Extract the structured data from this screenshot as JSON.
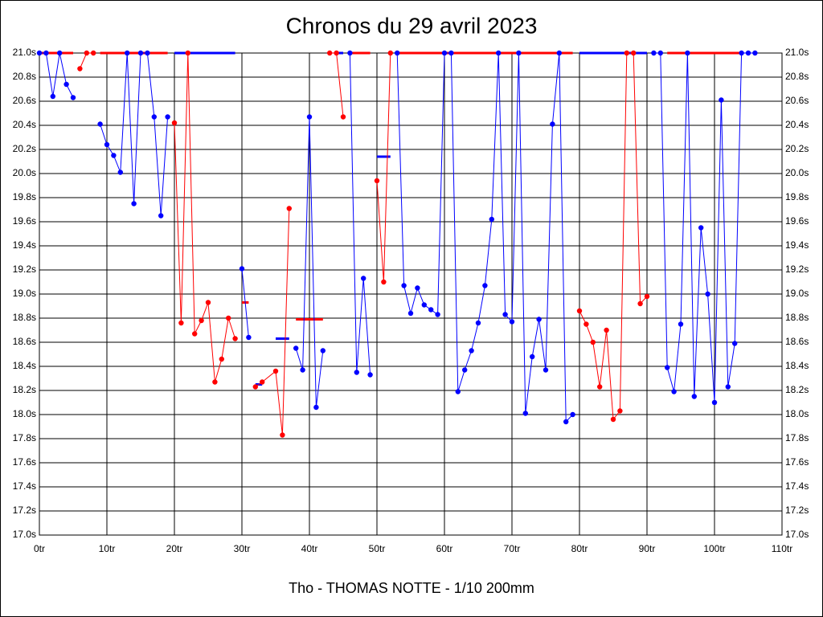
{
  "chart_data": {
    "type": "line",
    "title": "Chronos du 29 avril 2023",
    "x_label": "Tho - THOMAS NOTTE - 1/10 200mm",
    "xlim": [
      0,
      110
    ],
    "xticks": [
      {
        "value": 0,
        "label": "0tr"
      },
      {
        "value": 10,
        "label": "10tr"
      },
      {
        "value": 20,
        "label": "20tr"
      },
      {
        "value": 30,
        "label": "30tr"
      },
      {
        "value": 40,
        "label": "40tr"
      },
      {
        "value": 50,
        "label": "50tr"
      },
      {
        "value": 60,
        "label": "60tr"
      },
      {
        "value": 70,
        "label": "70tr"
      },
      {
        "value": 80,
        "label": "80tr"
      },
      {
        "value": 90,
        "label": "90tr"
      },
      {
        "value": 100,
        "label": "100tr"
      },
      {
        "value": 110,
        "label": "110tr"
      }
    ],
    "ylim": [
      17,
      21
    ],
    "yticks": [
      {
        "value": 17,
        "label": "17.0s"
      },
      {
        "value": 17.2,
        "label": "17.2s"
      },
      {
        "value": 17.4,
        "label": "17.4s"
      },
      {
        "value": 17.6,
        "label": "17.6s"
      },
      {
        "value": 17.8,
        "label": "17.8s"
      },
      {
        "value": 18,
        "label": "18.0s"
      },
      {
        "value": 18.2,
        "label": "18.2s"
      },
      {
        "value": 18.4,
        "label": "18.4s"
      },
      {
        "value": 18.6,
        "label": "18.6s"
      },
      {
        "value": 18.8,
        "label": "18.8s"
      },
      {
        "value": 19,
        "label": "19.0s"
      },
      {
        "value": 19.2,
        "label": "19.2s"
      },
      {
        "value": 19.4,
        "label": "19.4s"
      },
      {
        "value": 19.6,
        "label": "19.6s"
      },
      {
        "value": 19.8,
        "label": "19.8s"
      },
      {
        "value": 20,
        "label": "20.0s"
      },
      {
        "value": 20.2,
        "label": "20.2s"
      },
      {
        "value": 20.4,
        "label": "20.4s"
      },
      {
        "value": 20.6,
        "label": "20.6s"
      },
      {
        "value": 20.8,
        "label": "20.8s"
      },
      {
        "value": 21,
        "label": "21.0s"
      }
    ],
    "grid": true,
    "series": [
      {
        "color": "#0000ff",
        "x": [
          0,
          1,
          2,
          3,
          4,
          5
        ],
        "values": [
          21.0,
          21.0,
          20.64,
          21.0,
          20.74,
          20.63
        ]
      },
      {
        "color": "#ff0000",
        "x": [
          6,
          7,
          8
        ],
        "values": [
          20.87,
          21.0,
          21.0
        ]
      },
      {
        "color": "#0000ff",
        "x": [
          9,
          10,
          11,
          12,
          13,
          14,
          15,
          16,
          17,
          18,
          19
        ],
        "values": [
          20.41,
          20.24,
          20.15,
          20.01,
          21.0,
          19.75,
          21.0,
          21.0,
          20.47,
          19.65,
          20.47
        ]
      },
      {
        "color": "#ff0000",
        "x": [
          20,
          21,
          22,
          23,
          24,
          25,
          26,
          27,
          28,
          29
        ],
        "values": [
          20.42,
          18.76,
          21.0,
          18.67,
          18.78,
          18.93,
          18.27,
          18.46,
          18.8,
          18.63
        ]
      },
      {
        "color": "#0000ff",
        "x": [
          30,
          31
        ],
        "values": [
          19.21,
          18.64
        ]
      },
      {
        "color": "#ff0000",
        "x": [
          32,
          33,
          35,
          36,
          37
        ],
        "values": [
          18.23,
          18.27,
          18.36,
          17.83,
          19.71
        ]
      },
      {
        "color": "#0000ff",
        "x": [
          38,
          39,
          40,
          41,
          42
        ],
        "values": [
          18.55,
          18.37,
          20.47,
          18.06,
          18.53
        ]
      },
      {
        "color": "#ff0000",
        "x": [
          43,
          44,
          45
        ],
        "values": [
          21.0,
          21.0,
          20.47
        ]
      },
      {
        "color": "#0000ff",
        "x": [
          46,
          47,
          48,
          49
        ],
        "values": [
          21.0,
          18.35,
          19.13,
          18.33
        ]
      },
      {
        "color": "#ff0000",
        "x": [
          50,
          51,
          52
        ],
        "values": [
          19.94,
          19.1,
          21.0
        ]
      },
      {
        "color": "#0000ff",
        "x": [
          53,
          54,
          55,
          56,
          57,
          58,
          59,
          60,
          61,
          62,
          63,
          64,
          65,
          66,
          67,
          68,
          69,
          70,
          71,
          72,
          73,
          74,
          75,
          76,
          77,
          78,
          79
        ],
        "values": [
          21.0,
          19.07,
          18.84,
          19.05,
          18.91,
          18.87,
          18.83,
          21.0,
          21.0,
          18.19,
          18.37,
          18.53,
          18.76,
          19.07,
          19.62,
          21.0,
          18.83,
          18.77,
          21.0,
          18.01,
          18.48,
          18.79,
          18.37,
          20.41,
          21.0,
          17.94,
          18.0
        ]
      },
      {
        "color": "#ff0000",
        "x": [
          80,
          81,
          82,
          83,
          84,
          85,
          86,
          87,
          88,
          89,
          90
        ],
        "values": [
          18.86,
          18.75,
          18.6,
          18.23,
          18.7,
          17.96,
          18.03,
          21.0,
          21.0,
          18.92,
          18.98
        ]
      },
      {
        "color": "#0000ff",
        "x": [
          91,
          92,
          93,
          94,
          95,
          96,
          97,
          98,
          99,
          100,
          101,
          102,
          103,
          104,
          105,
          106
        ],
        "values": [
          21.0,
          21.0,
          18.39,
          18.19,
          18.75,
          21.0,
          18.15,
          19.55,
          19.0,
          18.1,
          20.61,
          18.23,
          18.59,
          21.0,
          21.0,
          21.0
        ]
      }
    ],
    "levels": [
      {
        "color": "#ff0000",
        "x": [
          0,
          5
        ],
        "value": 21.0
      },
      {
        "color": "#ff0000",
        "x": [
          9,
          19
        ],
        "value": 21.0
      },
      {
        "color": "#0000ff",
        "x": [
          20,
          29
        ],
        "value": 21.0
      },
      {
        "color": "#ff0000",
        "x": [
          30,
          31
        ],
        "value": 18.93
      },
      {
        "color": "#0000ff",
        "x": [
          32,
          33
        ],
        "value": 18.25
      },
      {
        "color": "#0000ff",
        "x": [
          35,
          37
        ],
        "value": 18.63
      },
      {
        "color": "#ff0000",
        "x": [
          38,
          42
        ],
        "value": 18.79
      },
      {
        "color": "#0000ff",
        "x": [
          44,
          45
        ],
        "value": 21.0
      },
      {
        "color": "#ff0000",
        "x": [
          46,
          49
        ],
        "value": 21.0
      },
      {
        "color": "#0000ff",
        "x": [
          50,
          52
        ],
        "value": 20.14
      },
      {
        "color": "#ff0000",
        "x": [
          53,
          79
        ],
        "value": 21.0
      },
      {
        "color": "#0000ff",
        "x": [
          80,
          90
        ],
        "value": 21.0
      },
      {
        "color": "#ff0000",
        "x": [
          93,
          104
        ],
        "value": 21.0
      }
    ]
  }
}
